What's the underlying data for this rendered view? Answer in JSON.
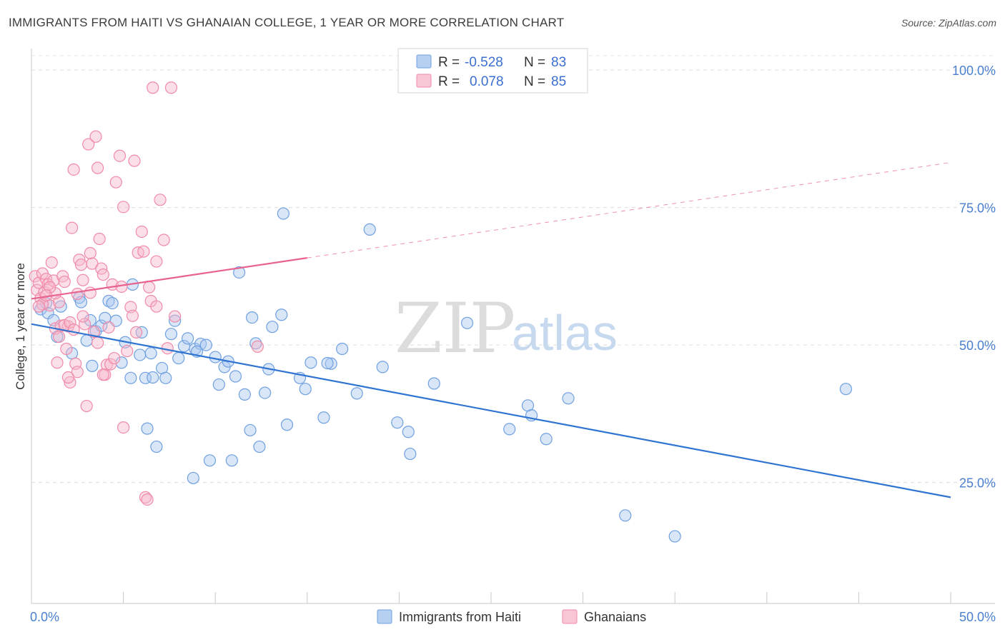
{
  "header": {
    "title": "IMMIGRANTS FROM HAITI VS GHANAIAN COLLEGE, 1 YEAR OR MORE CORRELATION CHART",
    "source": "Source: ZipAtlas.com"
  },
  "watermark": {
    "zip": "ZIP",
    "atlas": "atlas"
  },
  "legend": {
    "rows": [
      {
        "r_label": "R =",
        "r_value": "-0.528",
        "n_label": "N =",
        "n_value": "83",
        "color": "#a9c8f0"
      },
      {
        "r_label": "R =",
        "r_value": "0.078",
        "n_label": "N =",
        "n_value": "85",
        "color": "#f7b8cb"
      }
    ]
  },
  "bottom_legend": {
    "items": [
      {
        "label": "Immigrants from Haiti",
        "color": "#a9c8f0"
      },
      {
        "label": "Ghanaians",
        "color": "#f7b8cb"
      }
    ]
  },
  "chart_data": {
    "type": "scatter",
    "title": "IMMIGRANTS FROM HAITI VS GHANAIAN COLLEGE, 1 YEAR OR MORE CORRELATION CHART",
    "xlabel": "",
    "ylabel": "College, 1 year or more",
    "xlim": [
      0,
      50
    ],
    "ylim": [
      3,
      103
    ],
    "x_tick_labels": [
      "0.0%",
      "50.0%"
    ],
    "y_ticks": [
      25,
      50,
      75,
      100
    ],
    "y_tick_labels": [
      "25.0%",
      "50.0%",
      "75.0%",
      "100.0%"
    ],
    "grid": true,
    "series": [
      {
        "name": "Immigrants from Haiti",
        "color": "#6fa0e0",
        "fill": "#a9c8f0",
        "trend": {
          "x": [
            0,
            50
          ],
          "y": [
            53.8,
            22.3
          ],
          "color": "#2f74d0",
          "dashed_from": null
        },
        "points": [
          [
            0.5,
            56.5
          ],
          [
            0.8,
            57.6
          ],
          [
            0.9,
            55.8
          ],
          [
            1.2,
            54.5
          ],
          [
            1.4,
            51.5
          ],
          [
            1.6,
            57.0
          ],
          [
            2.2,
            48.5
          ],
          [
            2.6,
            58.6
          ],
          [
            2.7,
            57.8
          ],
          [
            3.0,
            50.8
          ],
          [
            3.2,
            54.5
          ],
          [
            3.3,
            46.2
          ],
          [
            3.5,
            52.5
          ],
          [
            3.8,
            53.5
          ],
          [
            4.0,
            54.9
          ],
          [
            4.2,
            58.0
          ],
          [
            4.4,
            57.6
          ],
          [
            4.6,
            54.4
          ],
          [
            4.9,
            46.8
          ],
          [
            5.1,
            50.5
          ],
          [
            5.4,
            44.0
          ],
          [
            5.5,
            61.0
          ],
          [
            5.9,
            48.2
          ],
          [
            6.0,
            52.3
          ],
          [
            6.2,
            44.0
          ],
          [
            6.3,
            34.8
          ],
          [
            6.5,
            48.5
          ],
          [
            6.8,
            31.5
          ],
          [
            7.1,
            45.8
          ],
          [
            7.3,
            44.0
          ],
          [
            7.6,
            52.0
          ],
          [
            7.8,
            54.4
          ],
          [
            8.0,
            47.6
          ],
          [
            8.3,
            49.8
          ],
          [
            8.5,
            51.2
          ],
          [
            8.8,
            25.8
          ],
          [
            8.9,
            49.3
          ],
          [
            9.2,
            50.2
          ],
          [
            9.5,
            50.0
          ],
          [
            9.7,
            29.0
          ],
          [
            10.0,
            47.8
          ],
          [
            10.2,
            42.8
          ],
          [
            10.5,
            46.0
          ],
          [
            10.7,
            47.0
          ],
          [
            10.9,
            29.0
          ],
          [
            11.1,
            44.3
          ],
          [
            11.3,
            63.2
          ],
          [
            11.6,
            41.0
          ],
          [
            11.9,
            34.5
          ],
          [
            12.0,
            55.0
          ],
          [
            12.2,
            50.3
          ],
          [
            12.4,
            31.5
          ],
          [
            12.7,
            41.3
          ],
          [
            12.9,
            45.6
          ],
          [
            13.1,
            53.3
          ],
          [
            13.6,
            55.5
          ],
          [
            13.7,
            73.9
          ],
          [
            13.9,
            35.5
          ],
          [
            14.6,
            44.0
          ],
          [
            14.9,
            42.0
          ],
          [
            15.2,
            46.8
          ],
          [
            15.9,
            36.8
          ],
          [
            16.3,
            46.6
          ],
          [
            16.9,
            49.3
          ],
          [
            17.7,
            41.2
          ],
          [
            19.1,
            46.0
          ],
          [
            19.9,
            35.9
          ],
          [
            20.5,
            34.2
          ],
          [
            20.6,
            30.2
          ],
          [
            21.9,
            43.0
          ],
          [
            23.7,
            54.0
          ],
          [
            26.0,
            34.7
          ],
          [
            27.0,
            39.0
          ],
          [
            27.2,
            37.2
          ],
          [
            28.0,
            32.9
          ],
          [
            29.2,
            40.3
          ],
          [
            32.3,
            19.0
          ],
          [
            35.0,
            15.2
          ],
          [
            44.3,
            42.0
          ],
          [
            18.4,
            71.0
          ],
          [
            16.1,
            46.7
          ],
          [
            9.0,
            48.8
          ],
          [
            6.6,
            44.1
          ]
        ]
      },
      {
        "name": "Ghanaians",
        "color": "#f08aa8",
        "fill": "#f7b8cb",
        "trend": {
          "x": [
            0,
            50
          ],
          "y": [
            58.4,
            83.2
          ],
          "color": "#e8628e",
          "dashed_from": 15
        },
        "points": [
          [
            0.2,
            62.5
          ],
          [
            0.3,
            60.0
          ],
          [
            0.4,
            61.3
          ],
          [
            0.5,
            58.5
          ],
          [
            0.6,
            63.0
          ],
          [
            0.7,
            59.6
          ],
          [
            0.8,
            62.0
          ],
          [
            0.9,
            61.0
          ],
          [
            1.0,
            57.2
          ],
          [
            1.1,
            65.0
          ],
          [
            1.2,
            61.7
          ],
          [
            1.3,
            53.0
          ],
          [
            1.4,
            46.8
          ],
          [
            1.5,
            57.8
          ],
          [
            1.6,
            53.5
          ],
          [
            1.7,
            62.5
          ],
          [
            1.8,
            61.5
          ],
          [
            1.9,
            49.3
          ],
          [
            2.0,
            53.4
          ],
          [
            2.1,
            43.2
          ],
          [
            2.2,
            71.3
          ],
          [
            2.3,
            81.9
          ],
          [
            2.4,
            46.6
          ],
          [
            2.5,
            45.1
          ],
          [
            2.6,
            65.5
          ],
          [
            2.7,
            64.6
          ],
          [
            2.8,
            61.8
          ],
          [
            2.9,
            53.8
          ],
          [
            3.0,
            38.9
          ],
          [
            3.1,
            86.5
          ],
          [
            3.2,
            66.7
          ],
          [
            3.3,
            64.8
          ],
          [
            3.4,
            52.4
          ],
          [
            3.5,
            87.9
          ],
          [
            3.6,
            82.2
          ],
          [
            3.7,
            69.3
          ],
          [
            3.8,
            63.9
          ],
          [
            3.9,
            62.8
          ],
          [
            4.0,
            44.6
          ],
          [
            4.1,
            46.4
          ],
          [
            4.2,
            53.2
          ],
          [
            4.4,
            61.0
          ],
          [
            4.6,
            79.6
          ],
          [
            4.8,
            84.4
          ],
          [
            5.0,
            75.1
          ],
          [
            5.2,
            48.9
          ],
          [
            5.4,
            56.9
          ],
          [
            5.6,
            83.5
          ],
          [
            5.8,
            66.8
          ],
          [
            6.0,
            70.6
          ],
          [
            6.2,
            22.3
          ],
          [
            6.3,
            21.9
          ],
          [
            6.4,
            60.5
          ],
          [
            6.6,
            96.8
          ],
          [
            6.8,
            65.2
          ],
          [
            7.0,
            76.4
          ],
          [
            7.2,
            69.1
          ],
          [
            7.4,
            49.4
          ],
          [
            7.6,
            96.8
          ],
          [
            7.8,
            55.2
          ],
          [
            0.6,
            57.4
          ],
          [
            1.3,
            59.4
          ],
          [
            1.8,
            53.6
          ],
          [
            2.1,
            54.1
          ],
          [
            2.3,
            52.8
          ],
          [
            3.6,
            50.4
          ],
          [
            4.3,
            46.5
          ],
          [
            5.0,
            35.0
          ],
          [
            5.5,
            55.3
          ],
          [
            6.5,
            58.0
          ],
          [
            12.3,
            49.7
          ],
          [
            3.9,
            44.6
          ],
          [
            2.0,
            44.1
          ],
          [
            5.7,
            52.3
          ],
          [
            4.5,
            47.6
          ],
          [
            1.0,
            60.5
          ],
          [
            0.8,
            59.0
          ],
          [
            2.5,
            59.3
          ],
          [
            6.8,
            57.0
          ],
          [
            3.2,
            59.5
          ],
          [
            1.5,
            51.5
          ],
          [
            2.8,
            55.2
          ],
          [
            4.9,
            60.6
          ],
          [
            6.1,
            67.0
          ],
          [
            0.4,
            57.0
          ]
        ]
      }
    ]
  }
}
